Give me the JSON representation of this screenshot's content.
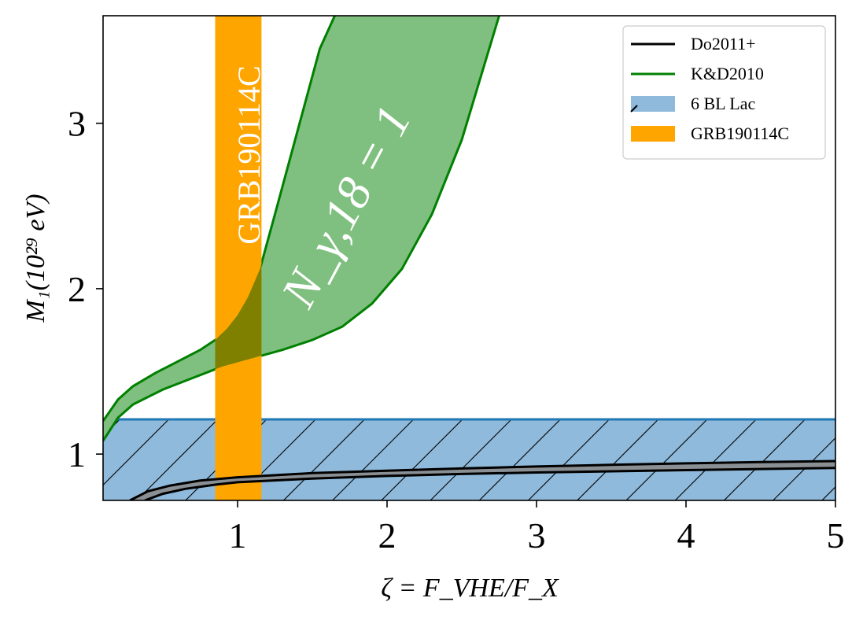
{
  "chart_data": {
    "type": "line",
    "xlim": [
      0.1,
      5
    ],
    "ylim": [
      0.72,
      3.65
    ],
    "xticks": [
      1,
      2,
      3,
      4,
      5
    ],
    "yticks": [
      1,
      2,
      3
    ],
    "xlabel": "ζ = F_VHE/F_X",
    "ylabel": "M₁(10²⁹ eV)",
    "legend_position": "top-right",
    "legend": [
      {
        "label": "Do2011+",
        "style": "line",
        "color": "#000000"
      },
      {
        "label": "K&D2010",
        "style": "line",
        "color": "#008000"
      },
      {
        "label": "6 BL Lac",
        "style": "hatched-patch",
        "color": "#8fbadb"
      },
      {
        "label": "GRB190114C",
        "style": "patch",
        "color": "#ffa500"
      }
    ],
    "annotations": [
      {
        "text": "N_γ,18 = 1",
        "color": "#ffffff"
      },
      {
        "text": "GRB190114C",
        "color": "#ffffff"
      }
    ],
    "colors": {
      "band_fill": "#8fbadb",
      "band_edge": "#1f77b4",
      "grb": "#ffa500",
      "kd_fill": "#7fbf7f",
      "kd_line": "#008000",
      "do_fill": "#8a8f94",
      "do_line": "#000000",
      "overlap": "#808000"
    },
    "series": [
      {
        "name": "K&D2010",
        "kind": "band",
        "upper": {
          "x": [
            0.1,
            0.2,
            0.3,
            0.45,
            0.6,
            0.75,
            0.85,
            0.93,
            1.0,
            1.07,
            1.15,
            1.25,
            1.4,
            1.55,
            1.65
          ],
          "y": [
            1.2,
            1.33,
            1.41,
            1.49,
            1.56,
            1.63,
            1.69,
            1.76,
            1.84,
            1.95,
            2.12,
            2.45,
            2.95,
            3.45,
            3.65
          ]
        },
        "lower": {
          "x": [
            0.1,
            0.2,
            0.3,
            0.5,
            0.7,
            0.9,
            1.1,
            1.3,
            1.5,
            1.7,
            1.9,
            2.1,
            2.3,
            2.5,
            2.65,
            2.75
          ],
          "y": [
            1.08,
            1.22,
            1.3,
            1.39,
            1.46,
            1.53,
            1.58,
            1.63,
            1.69,
            1.77,
            1.91,
            2.12,
            2.45,
            2.9,
            3.35,
            3.65
          ]
        }
      },
      {
        "name": "Do2011+",
        "kind": "band",
        "upper": {
          "x": [
            0.28,
            0.4,
            0.55,
            0.75,
            1.0,
            1.5,
            2.0,
            2.5,
            3.0,
            3.5,
            4.0,
            4.5,
            5.0
          ],
          "y": [
            0.72,
            0.775,
            0.81,
            0.84,
            0.86,
            0.885,
            0.9,
            0.913,
            0.925,
            0.935,
            0.944,
            0.952,
            0.958
          ]
        },
        "lower": {
          "x": [
            0.38,
            0.5,
            0.65,
            0.85,
            1.0,
            1.5,
            2.0,
            2.5,
            3.0,
            3.5,
            4.0,
            4.5,
            5.0
          ],
          "y": [
            0.72,
            0.76,
            0.79,
            0.815,
            0.83,
            0.852,
            0.868,
            0.88,
            0.889,
            0.896,
            0.903,
            0.91,
            0.916
          ]
        }
      },
      {
        "name": "6 BL Lac",
        "kind": "hband",
        "y_low": 0.72,
        "y_high": 1.21
      },
      {
        "name": "GRB190114C",
        "kind": "vband",
        "x_low": 0.85,
        "x_high": 1.16
      }
    ]
  }
}
